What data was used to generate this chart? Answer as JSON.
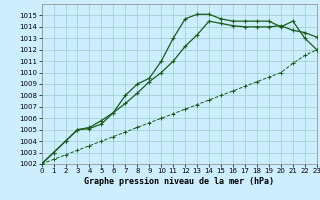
{
  "title": "Graphe pression niveau de la mer (hPa)",
  "bg_color": "#cceeff",
  "grid_color": "#99cccc",
  "line_color": "#1a5c1a",
  "xlim": [
    0,
    23
  ],
  "ylim": [
    1002,
    1016
  ],
  "xticks": [
    0,
    1,
    2,
    3,
    4,
    5,
    6,
    7,
    8,
    9,
    10,
    11,
    12,
    13,
    14,
    15,
    16,
    17,
    18,
    19,
    20,
    21,
    22,
    23
  ],
  "yticks": [
    1002,
    1003,
    1004,
    1005,
    1006,
    1007,
    1008,
    1009,
    1010,
    1011,
    1012,
    1013,
    1014,
    1015
  ],
  "x": [
    0,
    1,
    2,
    3,
    4,
    5,
    6,
    7,
    8,
    9,
    10,
    11,
    12,
    13,
    14,
    15,
    16,
    17,
    18,
    19,
    20,
    21,
    22,
    23
  ],
  "line1": [
    1002,
    1002.4,
    1002.8,
    1003.2,
    1003.6,
    1004.0,
    1004.4,
    1004.8,
    1005.2,
    1005.6,
    1006.0,
    1006.4,
    1006.8,
    1007.2,
    1007.6,
    1008.0,
    1008.4,
    1008.8,
    1009.2,
    1009.6,
    1010.0,
    1010.8,
    1011.5,
    1012.0
  ],
  "line2": [
    1002,
    1003,
    1004,
    1005,
    1005.1,
    1005.5,
    1006.5,
    1008.0,
    1009.0,
    1009.5,
    1011.0,
    1013.0,
    1014.7,
    1015.1,
    1015.1,
    1014.7,
    1014.5,
    1014.5,
    1014.5,
    1014.5,
    1014.0,
    1014.5,
    1013.0,
    1012.0
  ],
  "line3": [
    1002,
    1003,
    1004,
    1005,
    1005.2,
    1005.8,
    1006.5,
    1007.3,
    1008.2,
    1009.2,
    1010.0,
    1011.0,
    1012.3,
    1013.3,
    1014.5,
    1014.3,
    1014.1,
    1014.0,
    1014.0,
    1014.0,
    1014.1,
    1013.7,
    1013.5,
    1013.1
  ],
  "tick_fontsize": 5,
  "xlabel_fontsize": 6
}
